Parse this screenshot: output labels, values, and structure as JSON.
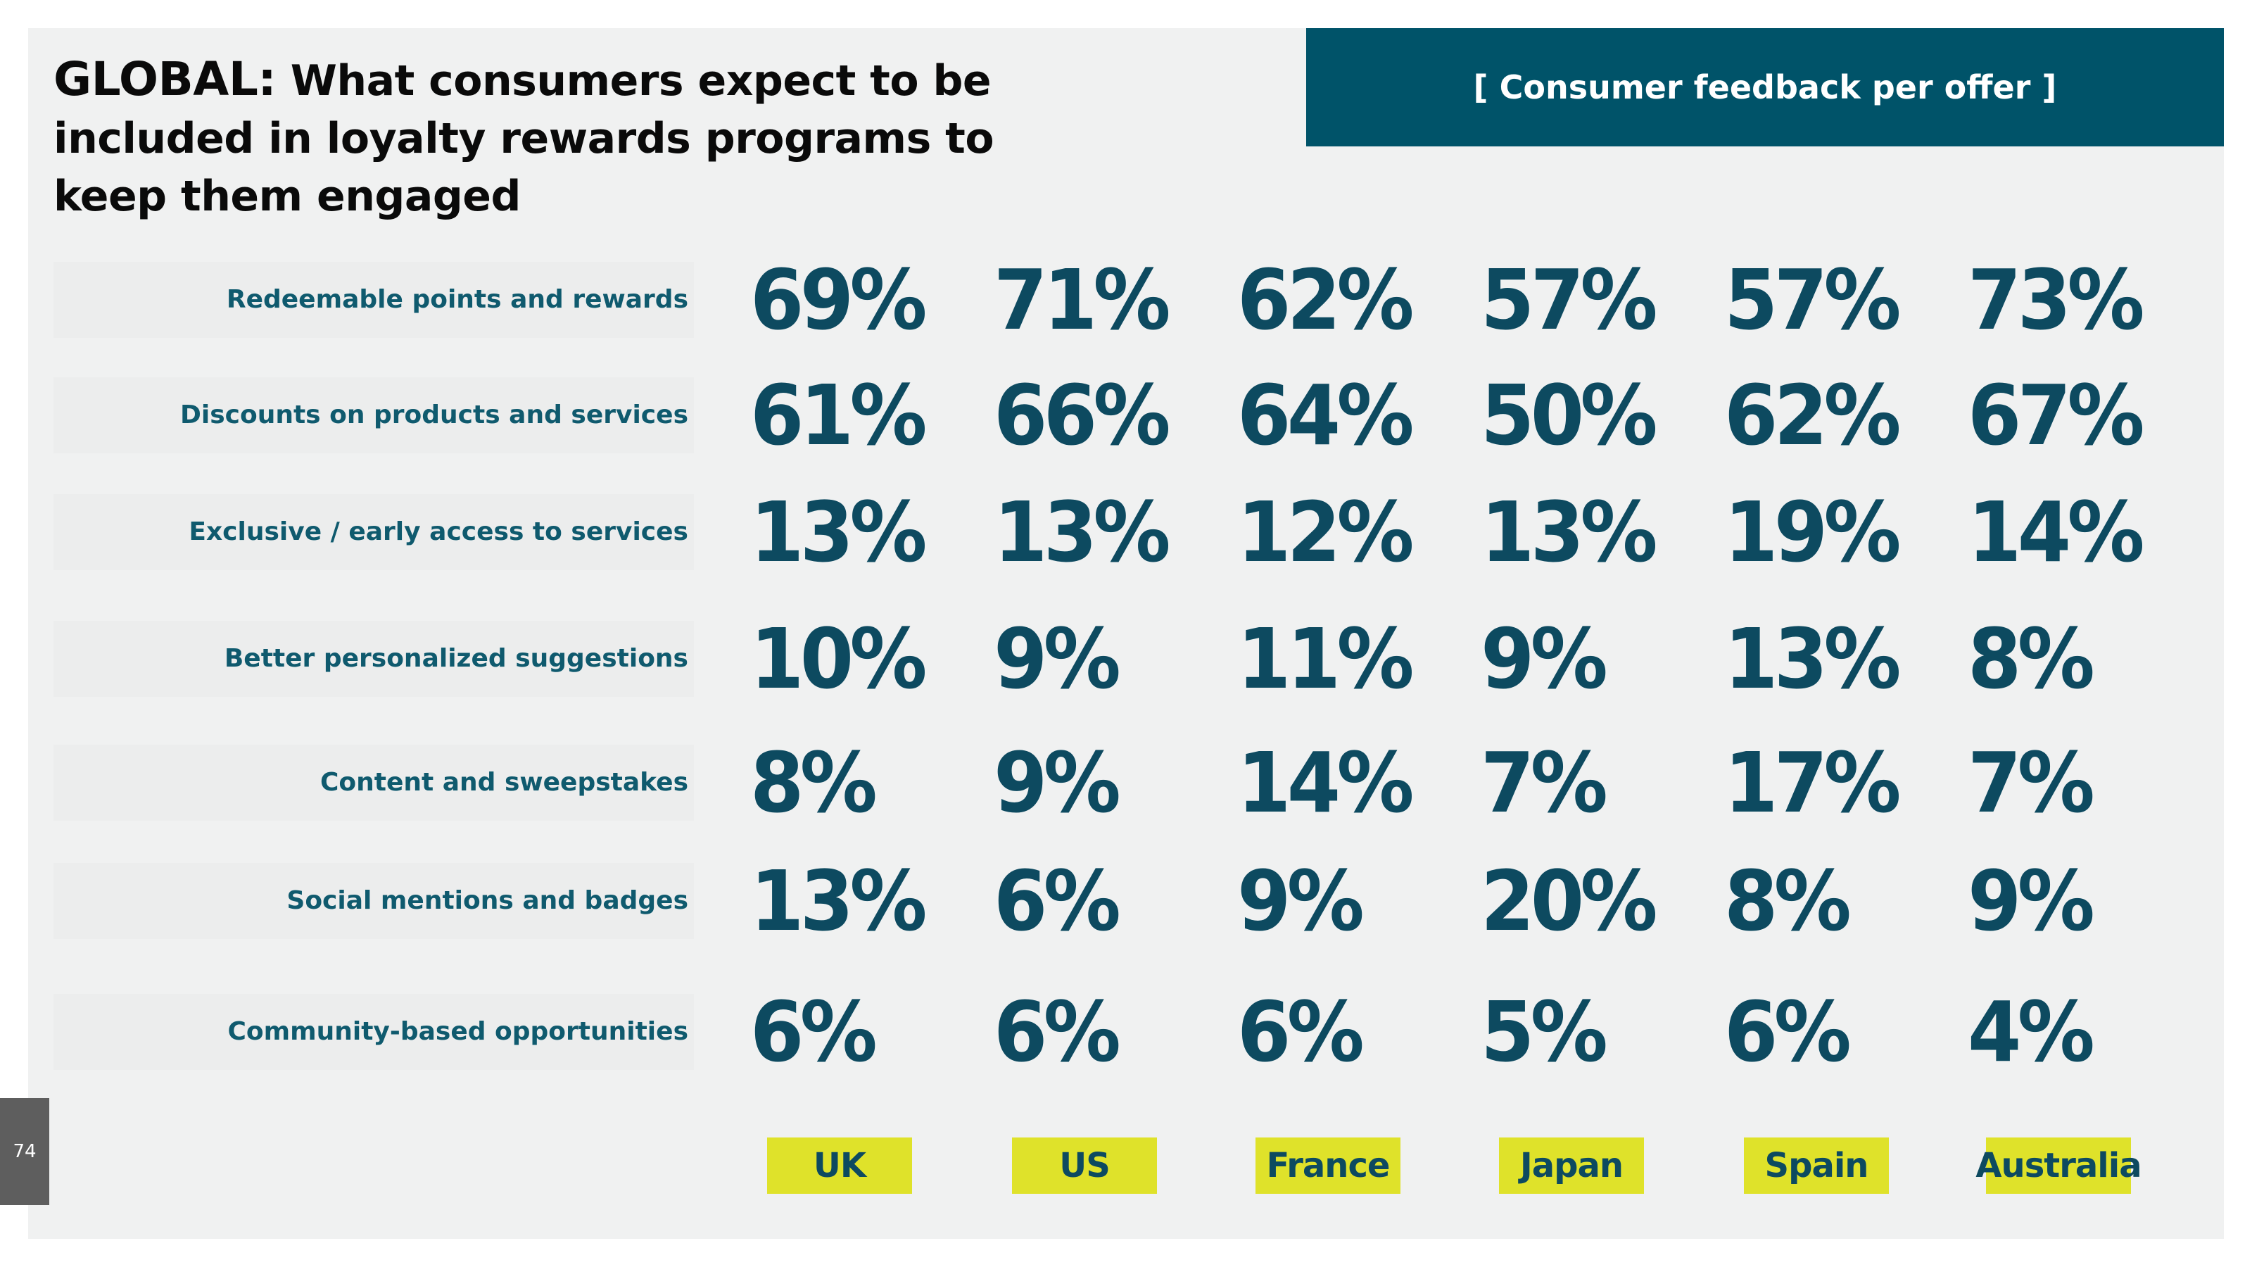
{
  "title": {
    "lead": "GLOBAL:",
    "rest": " What consumers expect to be included in loyalty rewards programs to keep them engaged"
  },
  "banner": "[ Consumer feedback per offer ]",
  "page_number": "74",
  "colors": {
    "teal": "#005369",
    "value_text": "#0d4a60",
    "label_text": "#0f5a6e",
    "country_bg": "#dfe22a",
    "panel_bg": "#f0f1f1"
  },
  "chart_data": {
    "type": "table",
    "title": "GLOBAL: What consumers expect to be included in loyalty rewards programs to keep them engaged",
    "subtitle": "[ Consumer feedback per offer ]",
    "columns": [
      "UK",
      "US",
      "France",
      "Japan",
      "Spain",
      "Australia"
    ],
    "rows": [
      {
        "label": "Redeemable points and rewards",
        "values": [
          "69%",
          "71%",
          "62%",
          "57%",
          "57%",
          "73%"
        ]
      },
      {
        "label": "Discounts on products and services",
        "values": [
          "61%",
          "66%",
          "64%",
          "50%",
          "62%",
          "67%"
        ]
      },
      {
        "label": "Exclusive / early access to services",
        "values": [
          "13%",
          "13%",
          "12%",
          "13%",
          "19%",
          "14%"
        ]
      },
      {
        "label": "Better personalized suggestions",
        "values": [
          "10%",
          "9%",
          "11%",
          "9%",
          "13%",
          "8%"
        ]
      },
      {
        "label": "Content and sweepstakes",
        "values": [
          "8%",
          "9%",
          "14%",
          "7%",
          "17%",
          "7%"
        ]
      },
      {
        "label": "Social mentions and badges",
        "values": [
          "13%",
          "6%",
          "9%",
          "20%",
          "8%",
          "9%"
        ]
      },
      {
        "label": "Community-based opportunities",
        "values": [
          "6%",
          "6%",
          "6%",
          "5%",
          "6%",
          "4%"
        ]
      }
    ]
  }
}
